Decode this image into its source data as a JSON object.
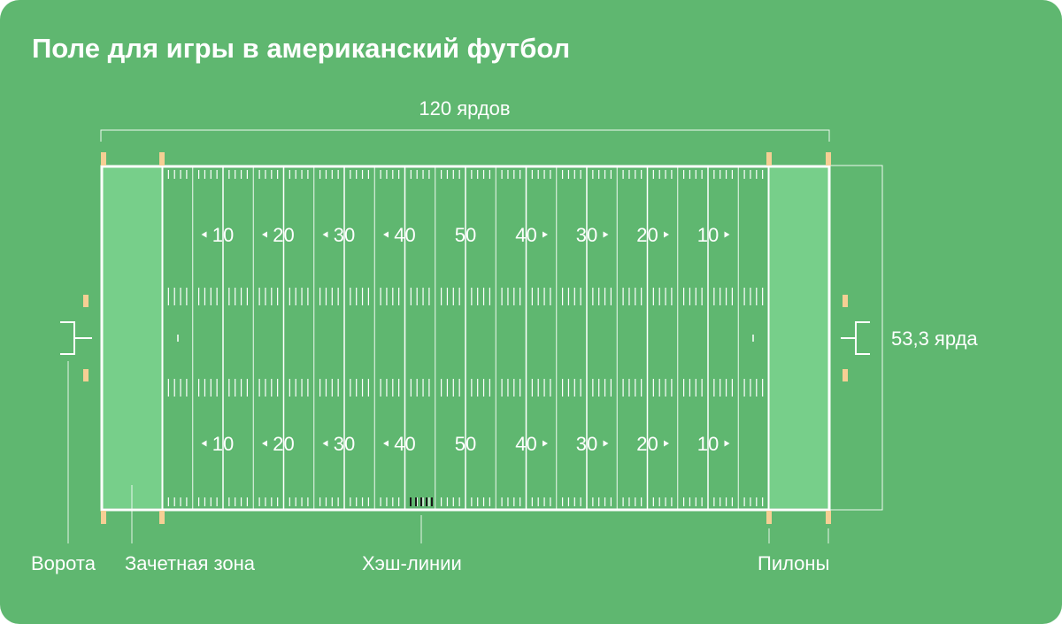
{
  "title": "Поле для игры в американский футбол",
  "dimensions": {
    "length": "120 ярдов",
    "width": "53,3 ярда"
  },
  "yard_numbers": [
    "10",
    "20",
    "30",
    "40",
    "50",
    "40",
    "30",
    "20",
    "10"
  ],
  "callouts": {
    "goalposts": "Ворота",
    "end_zone": "Зачетная зона",
    "hash_marks": "Хэш-линии",
    "pylons": "Пилоны"
  },
  "colors": {
    "background": "#5fb770",
    "end_zone": "#77cf8a",
    "lines": "#ffffff",
    "pylons": "#f6cf94"
  }
}
